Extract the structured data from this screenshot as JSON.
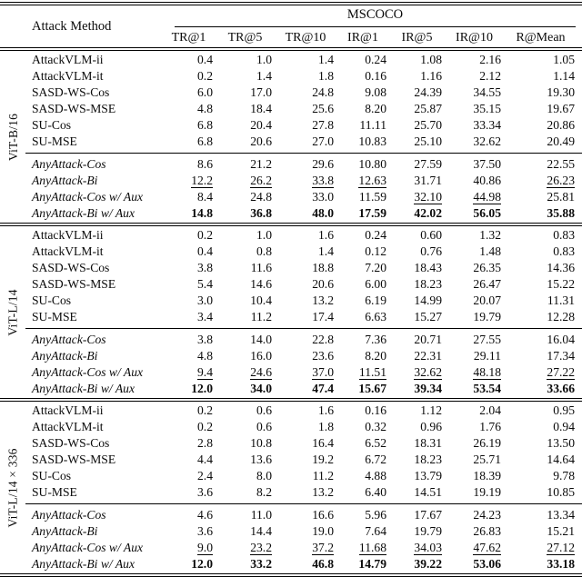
{
  "table": {
    "method_header": "Attack Method",
    "dataset_header": "MSCOCO",
    "metric_columns": [
      "TR@1",
      "TR@5",
      "TR@10",
      "IR@1",
      "IR@5",
      "IR@10",
      "R@Mean"
    ],
    "groups": [
      {
        "model": "ViT-B/16",
        "baseline_rows": [
          {
            "method": "AttackVLM-ii",
            "values": [
              "0.4",
              "1.0",
              "1.4",
              "0.24",
              "1.08",
              "2.16",
              "1.05"
            ]
          },
          {
            "method": "AttackVLM-it",
            "values": [
              "0.2",
              "1.4",
              "1.8",
              "0.16",
              "1.16",
              "2.12",
              "1.14"
            ]
          },
          {
            "method": "SASD-WS-Cos",
            "values": [
              "6.0",
              "17.0",
              "24.8",
              "9.08",
              "24.39",
              "34.55",
              "19.30"
            ]
          },
          {
            "method": "SASD-WS-MSE",
            "values": [
              "4.8",
              "18.4",
              "25.6",
              "8.20",
              "25.87",
              "35.15",
              "19.67"
            ]
          },
          {
            "method": "SU-Cos",
            "values": [
              "6.8",
              "20.4",
              "27.8",
              "11.11",
              "25.70",
              "33.34",
              "20.86"
            ]
          },
          {
            "method": "SU-MSE",
            "values": [
              "6.8",
              "20.6",
              "27.0",
              "10.83",
              "25.10",
              "32.62",
              "20.49"
            ]
          }
        ],
        "anyattack_rows": [
          {
            "method": "AnyAttack-Cos",
            "values": [
              "8.6",
              "21.2",
              "29.6",
              "10.80",
              "27.59",
              "37.50",
              "22.55"
            ]
          },
          {
            "method": "AnyAttack-Bi",
            "values": [
              "12.2",
              "26.2",
              "33.8",
              "12.63",
              "31.71",
              "40.86",
              "26.23"
            ],
            "underline": [
              1,
              1,
              1,
              1,
              0,
              0,
              1
            ]
          },
          {
            "method": "AnyAttack-Cos w/ Aux",
            "values": [
              "8.4",
              "24.8",
              "33.0",
              "11.59",
              "32.10",
              "44.98",
              "25.81"
            ],
            "underline": [
              0,
              0,
              0,
              0,
              1,
              1,
              0
            ]
          },
          {
            "method": "AnyAttack-Bi w/ Aux",
            "values": [
              "14.8",
              "36.8",
              "48.0",
              "17.59",
              "42.02",
              "56.05",
              "35.88"
            ],
            "bold": true
          }
        ]
      },
      {
        "model": "ViT-L/14",
        "baseline_rows": [
          {
            "method": "AttackVLM-ii",
            "values": [
              "0.2",
              "1.0",
              "1.6",
              "0.24",
              "0.60",
              "1.32",
              "0.83"
            ]
          },
          {
            "method": "AttackVLM-it",
            "values": [
              "0.4",
              "0.8",
              "1.4",
              "0.12",
              "0.76",
              "1.48",
              "0.83"
            ]
          },
          {
            "method": "SASD-WS-Cos",
            "values": [
              "3.8",
              "11.6",
              "18.8",
              "7.20",
              "18.43",
              "26.35",
              "14.36"
            ]
          },
          {
            "method": "SASD-WS-MSE",
            "values": [
              "5.4",
              "14.6",
              "20.6",
              "6.00",
              "18.23",
              "26.47",
              "15.22"
            ]
          },
          {
            "method": "SU-Cos",
            "values": [
              "3.0",
              "10.4",
              "13.2",
              "6.19",
              "14.99",
              "20.07",
              "11.31"
            ]
          },
          {
            "method": "SU-MSE",
            "values": [
              "3.4",
              "11.2",
              "17.4",
              "6.63",
              "15.27",
              "19.79",
              "12.28"
            ]
          }
        ],
        "anyattack_rows": [
          {
            "method": "AnyAttack-Cos",
            "values": [
              "3.8",
              "14.0",
              "22.8",
              "7.36",
              "20.71",
              "27.55",
              "16.04"
            ]
          },
          {
            "method": "AnyAttack-Bi",
            "values": [
              "4.8",
              "16.0",
              "23.6",
              "8.20",
              "22.31",
              "29.11",
              "17.34"
            ]
          },
          {
            "method": "AnyAttack-Cos w/ Aux",
            "values": [
              "9.4",
              "24.6",
              "37.0",
              "11.51",
              "32.62",
              "48.18",
              "27.22"
            ],
            "underline": [
              1,
              1,
              1,
              1,
              1,
              1,
              1
            ]
          },
          {
            "method": "AnyAttack-Bi w/ Aux",
            "values": [
              "12.0",
              "34.0",
              "47.4",
              "15.67",
              "39.34",
              "53.54",
              "33.66"
            ],
            "bold": true
          }
        ]
      },
      {
        "model": "ViT-L/14 × 336",
        "baseline_rows": [
          {
            "method": "AttackVLM-ii",
            "values": [
              "0.2",
              "0.6",
              "1.6",
              "0.16",
              "1.12",
              "2.04",
              "0.95"
            ]
          },
          {
            "method": "AttackVLM-it",
            "values": [
              "0.2",
              "0.6",
              "1.8",
              "0.32",
              "0.96",
              "1.76",
              "0.94"
            ]
          },
          {
            "method": "SASD-WS-Cos",
            "values": [
              "2.8",
              "10.8",
              "16.4",
              "6.52",
              "18.31",
              "26.19",
              "13.50"
            ]
          },
          {
            "method": "SASD-WS-MSE",
            "values": [
              "4.4",
              "13.6",
              "19.2",
              "6.72",
              "18.23",
              "25.71",
              "14.64"
            ]
          },
          {
            "method": "SU-Cos",
            "values": [
              "2.4",
              "8.0",
              "11.2",
              "4.88",
              "13.79",
              "18.39",
              "9.78"
            ]
          },
          {
            "method": "SU-MSE",
            "values": [
              "3.6",
              "8.2",
              "13.2",
              "6.40",
              "14.51",
              "19.19",
              "10.85"
            ]
          }
        ],
        "anyattack_rows": [
          {
            "method": "AnyAttack-Cos",
            "values": [
              "4.6",
              "11.0",
              "16.6",
              "5.96",
              "17.67",
              "24.23",
              "13.34"
            ]
          },
          {
            "method": "AnyAttack-Bi",
            "values": [
              "3.6",
              "14.4",
              "19.0",
              "7.64",
              "19.79",
              "26.83",
              "15.21"
            ]
          },
          {
            "method": "AnyAttack-Cos w/ Aux",
            "values": [
              "9.0",
              "23.2",
              "37.2",
              "11.68",
              "34.03",
              "47.62",
              "27.12"
            ],
            "underline": [
              1,
              1,
              1,
              1,
              1,
              1,
              1
            ]
          },
          {
            "method": "AnyAttack-Bi w/ Aux",
            "values": [
              "12.0",
              "33.2",
              "46.8",
              "14.79",
              "39.22",
              "53.06",
              "33.18"
            ],
            "bold": true
          }
        ]
      }
    ]
  }
}
